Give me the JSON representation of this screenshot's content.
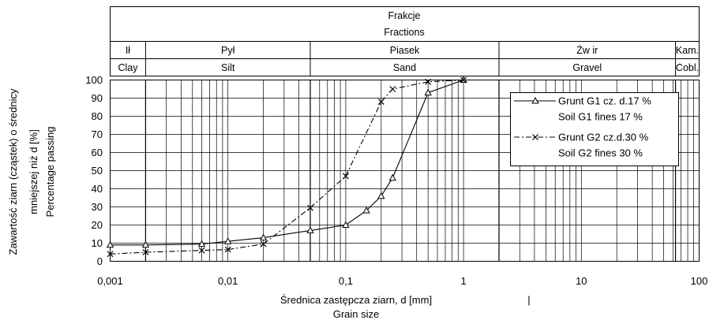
{
  "chart_data": {
    "type": "line",
    "x_scale": "log",
    "xlim": [
      0.001,
      100
    ],
    "ylim": [
      0,
      100
    ],
    "grid": true,
    "legend_position": "top-right",
    "header": {
      "title_pl": "Frakcje",
      "title_en": "Fractions",
      "fractions": [
        {
          "pl": "Ił",
          "en": "Clay"
        },
        {
          "pl": "Pył",
          "en": "Silt"
        },
        {
          "pl": "Piasek",
          "en": "Sand"
        },
        {
          "pl": "Żw ir",
          "en": "Gravel"
        },
        {
          "pl": "Kam.",
          "en": "Cobl."
        }
      ]
    },
    "fraction_bounds": [
      0.001,
      0.002,
      0.05,
      2,
      63,
      100
    ],
    "xlabel_pl": "Średnica zastępcza ziarn, d [mm]",
    "xlabel_marker": "|",
    "xlabel_en": "Grain size",
    "ylabel_line1": "Zawartość ziarn (cząstek) o średnicy",
    "ylabel_line2": "mniejszej niż d [%]",
    "ylabel_line3": "Percentage passing",
    "x_ticks": [
      "0,001",
      "0,01",
      "0,1",
      "1",
      "10",
      "100"
    ],
    "y_ticks": [
      "0",
      "10",
      "20",
      "30",
      "40",
      "50",
      "60",
      "70",
      "80",
      "90",
      "100"
    ],
    "series": [
      {
        "legend_line1": "Grunt G1 cz. d.17 %",
        "legend_line2": "Soil G1 fines 17 %",
        "marker": "triangle",
        "dash": "solid",
        "points": [
          {
            "x": 0.001,
            "y": 9
          },
          {
            "x": 0.002,
            "y": 9
          },
          {
            "x": 0.006,
            "y": 9.5
          },
          {
            "x": 0.01,
            "y": 11
          },
          {
            "x": 0.02,
            "y": 13
          },
          {
            "x": 0.05,
            "y": 17
          },
          {
            "x": 0.1,
            "y": 20
          },
          {
            "x": 0.15,
            "y": 28
          },
          {
            "x": 0.2,
            "y": 36
          },
          {
            "x": 0.25,
            "y": 46
          },
          {
            "x": 0.5,
            "y": 93
          },
          {
            "x": 1,
            "y": 100
          }
        ]
      },
      {
        "legend_line1": "Grunt G2 cz.d.30 %",
        "legend_line2": "Soil G2 fines 30 %",
        "marker": "x",
        "dash": "dashdot",
        "points": [
          {
            "x": 0.001,
            "y": 4
          },
          {
            "x": 0.002,
            "y": 5
          },
          {
            "x": 0.006,
            "y": 6
          },
          {
            "x": 0.01,
            "y": 6.5
          },
          {
            "x": 0.02,
            "y": 9.5
          },
          {
            "x": 0.05,
            "y": 29.5
          },
          {
            "x": 0.1,
            "y": 47
          },
          {
            "x": 0.2,
            "y": 88
          },
          {
            "x": 0.25,
            "y": 95
          },
          {
            "x": 0.5,
            "y": 99
          },
          {
            "x": 1,
            "y": 100
          }
        ]
      }
    ]
  }
}
